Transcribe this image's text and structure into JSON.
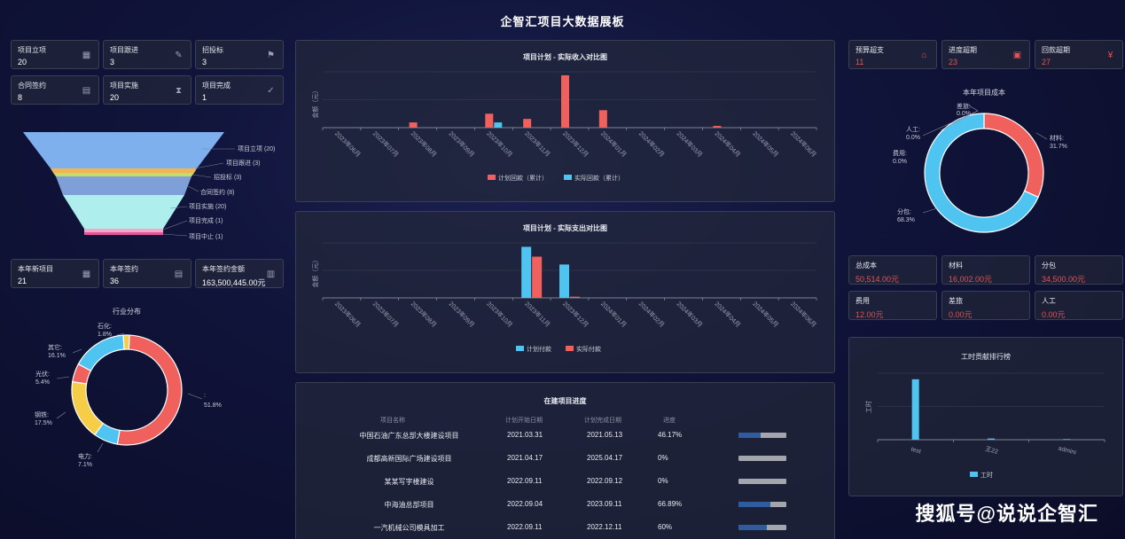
{
  "title": "企智汇项目大数据展板",
  "left_stats": [
    {
      "label": "项目立项",
      "value": "20",
      "icon": "grid-icon"
    },
    {
      "label": "项目跟进",
      "value": "3",
      "icon": "edit-icon"
    },
    {
      "label": "招投标",
      "value": "3",
      "icon": "flag-icon"
    },
    {
      "label": "合同签约",
      "value": "8",
      "icon": "contract-icon"
    },
    {
      "label": "项目实施",
      "value": "20",
      "icon": "hourglass-icon"
    },
    {
      "label": "项目完成",
      "value": "1",
      "icon": "check-circle-icon"
    }
  ],
  "funnel": {
    "labels": [
      "项目立项 (20)",
      "项目跟进 (3)",
      "招投标 (3)",
      "合同签约 (8)",
      "项目实施 (20)",
      "项目完成 (1)",
      "项目中止 (1)"
    ]
  },
  "year_stats": [
    {
      "label": "本年新项目",
      "value": "21",
      "icon": "grid-icon"
    },
    {
      "label": "本年签约",
      "value": "36",
      "icon": "contract-icon"
    },
    {
      "label": "本年签约金额",
      "value": "163,500,445.00元",
      "icon": "ledger-icon"
    }
  ],
  "industry": {
    "title": "行业分布",
    "labels": [
      {
        "name": "石化:",
        "pct": "1.8%"
      },
      {
        "name": "其它:",
        "pct": "16.1%"
      },
      {
        "name": "光伏:",
        "pct": "5.4%"
      },
      {
        "name": "钢铁:",
        "pct": "17.5%"
      },
      {
        "name": "电力:",
        "pct": "7.1%"
      },
      {
        "name": ":",
        "pct": "51.8%"
      }
    ]
  },
  "chart_data": [
    {
      "type": "bar",
      "title": "项目计划 - 实际收入对比图",
      "ylabel": "金额（元）",
      "categories": [
        "2023年06月",
        "2023年07月",
        "2023年08月",
        "2023年09月",
        "2023年10月",
        "2023年11月",
        "2023年12月",
        "2024年01月",
        "2024年02月",
        "2024年03月",
        "2024年04月",
        "2024年05月",
        "2024年06月"
      ],
      "series": [
        {
          "name": "计划回款（累计）",
          "values": [
            0,
            0,
            1.5,
            0,
            4,
            2.5,
            15,
            5,
            0,
            0,
            0.5,
            0,
            0
          ],
          "color": "#f0605d"
        },
        {
          "name": "实际回款（累计）",
          "values": [
            0,
            0,
            0,
            0,
            1.5,
            0,
            0,
            0,
            0,
            0,
            0,
            0,
            0
          ],
          "color": "#4fc4f0"
        }
      ],
      "ylim": [
        0,
        16
      ]
    },
    {
      "type": "bar",
      "title": "项目计划 - 实际支出对比图",
      "ylabel": "金额（元）",
      "categories": [
        "2023年06月",
        "2023年07月",
        "2023年08月",
        "2023年09月",
        "2023年10月",
        "2023年11月",
        "2023年12月",
        "2024年01月",
        "2024年02月",
        "2024年03月",
        "2024年04月",
        "2024年05月",
        "2024年06月"
      ],
      "series": [
        {
          "name": "计划付款",
          "values": [
            0,
            0,
            0,
            0,
            0,
            13,
            8.5,
            0,
            0,
            0,
            0,
            0,
            0
          ],
          "color": "#4fc4f0"
        },
        {
          "name": "实际付款",
          "values": [
            0,
            0,
            0,
            0,
            0,
            10.5,
            0.3,
            0,
            0,
            0,
            0,
            0,
            0
          ],
          "color": "#f0605d"
        }
      ],
      "ylim": [
        0,
        14
      ]
    },
    {
      "type": "bar",
      "title": "工时贡献排行榜",
      "ylabel": "工时",
      "categories": [
        "test",
        "王22",
        "admini"
      ],
      "series": [
        {
          "name": "工时",
          "values": [
            100,
            2,
            1
          ],
          "color": "#4fc4f0"
        }
      ],
      "ylim": [
        0,
        110
      ]
    },
    {
      "type": "pie",
      "title": "本年项目成本",
      "categories": [
        "材料",
        "分包",
        "费用",
        "人工",
        "差旅"
      ],
      "values": [
        31.7,
        68.3,
        0.0,
        0.0,
        0.0
      ]
    }
  ],
  "progress": {
    "title": "在建项目进度",
    "headers": [
      "项目名称",
      "计划开始日期",
      "计划完成日期",
      "进度"
    ],
    "rows": [
      {
        "name": "中国石油广东总部大楼建设项目",
        "start": "2021.03.31",
        "end": "2021.05.13",
        "pct": "46.17%",
        "fill": 0.4617
      },
      {
        "name": "成都高新国际广场建设项目",
        "start": "2021.04.17",
        "end": "2025.04.17",
        "pct": "0%",
        "fill": 0
      },
      {
        "name": "某某写字楼建设",
        "start": "2022.09.11",
        "end": "2022.09.12",
        "pct": "0%",
        "fill": 0
      },
      {
        "name": "中海油总部项目",
        "start": "2022.09.04",
        "end": "2023.09.11",
        "pct": "66.89%",
        "fill": 0.6689
      },
      {
        "name": "一汽机械公司模具加工",
        "start": "2022.09.11",
        "end": "2022.12.11",
        "pct": "60%",
        "fill": 0.6
      }
    ]
  },
  "right_stats": [
    {
      "label": "预算超支",
      "value": "11",
      "icon": "house-icon"
    },
    {
      "label": "进度超期",
      "value": "23",
      "icon": "calendar-icon"
    },
    {
      "label": "回款超期",
      "value": "27",
      "icon": "yuan-icon"
    }
  ],
  "cost": {
    "labels": [
      {
        "name": "材料:",
        "pct": "31.7%"
      },
      {
        "name": "分包:",
        "pct": "68.3%"
      },
      {
        "name": "费用:",
        "pct": "0.0%"
      },
      {
        "name": "人工:",
        "pct": "0.0%"
      },
      {
        "name": "差旅:",
        "pct": "0.0%"
      }
    ]
  },
  "cost_cards": [
    {
      "label": "总成本",
      "value": "50,514.00元"
    },
    {
      "label": "材料",
      "value": "16,002.00元"
    },
    {
      "label": "分包",
      "value": "34,500.00元"
    },
    {
      "label": "费用",
      "value": "12.00元"
    },
    {
      "label": "差旅",
      "value": "0.00元"
    },
    {
      "label": "人工",
      "value": "0.00元"
    }
  ],
  "watermark": "搜狐号@说说企智汇"
}
